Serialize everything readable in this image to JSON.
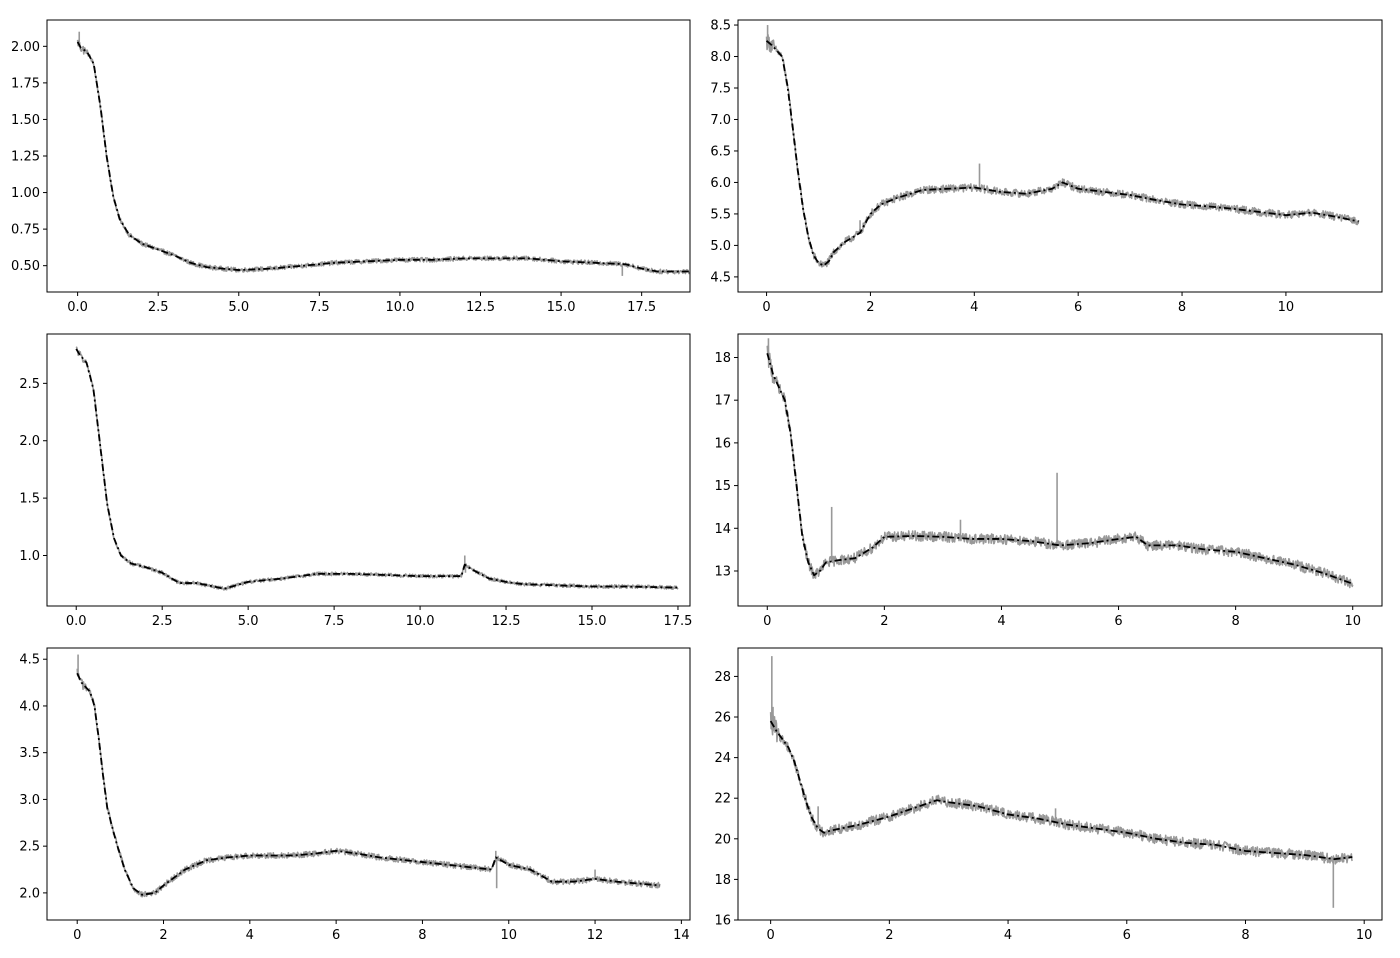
{
  "colors": {
    "noisy": "#999999",
    "smooth": "#000000",
    "background": "#ffffff"
  },
  "chart_data": [
    {
      "type": "line",
      "xlim": [
        -0.95,
        19.0
      ],
      "ylim": [
        0.32,
        2.18
      ],
      "xticks": [
        0,
        2.5,
        5,
        7.5,
        10,
        12.5,
        15,
        17.5
      ],
      "xtick_labels": [
        "0.0",
        "2.5",
        "5.0",
        "7.5",
        "10.0",
        "12.5",
        "15.0",
        "17.5"
      ],
      "yticks": [
        0.5,
        0.75,
        1.0,
        1.25,
        1.5,
        1.75,
        2.0
      ],
      "ytick_labels": [
        "0.50",
        "0.75",
        "1.00",
        "1.25",
        "1.50",
        "1.75",
        "2.00"
      ],
      "noise": 0.015,
      "spikes": [
        [
          0.05,
          2.1
        ],
        [
          16.9,
          0.43
        ],
        [
          17.1,
          0.5
        ]
      ],
      "x": [
        0,
        0.1,
        0.3,
        0.5,
        0.7,
        0.9,
        1.1,
        1.3,
        1.6,
        2.0,
        2.5,
        3.0,
        3.5,
        4.0,
        5.0,
        6.0,
        7.5,
        8.0,
        9.0,
        10.0,
        11.0,
        12.0,
        13.0,
        14.0,
        15.0,
        16.0,
        17.0,
        17.5,
        18.0,
        19.0
      ],
      "y": [
        2.03,
        1.99,
        1.96,
        1.88,
        1.6,
        1.25,
        0.98,
        0.82,
        0.71,
        0.65,
        0.61,
        0.57,
        0.52,
        0.49,
        0.47,
        0.48,
        0.51,
        0.52,
        0.53,
        0.54,
        0.54,
        0.55,
        0.55,
        0.55,
        0.53,
        0.52,
        0.51,
        0.48,
        0.46,
        0.46
      ]
    },
    {
      "type": "line",
      "xlim": [
        -0.55,
        11.85
      ],
      "ylim": [
        4.26,
        8.58
      ],
      "xticks": [
        0,
        2,
        4,
        6,
        8,
        10
      ],
      "xtick_labels": [
        "0",
        "2",
        "4",
        "6",
        "8",
        "10"
      ],
      "yticks": [
        4.5,
        5.0,
        5.5,
        6.0,
        6.5,
        7.0,
        7.5,
        8.0,
        8.5
      ],
      "ytick_labels": [
        "4.5",
        "5.0",
        "5.5",
        "6.0",
        "6.5",
        "7.0",
        "7.5",
        "8.0",
        "8.5"
      ],
      "noise": 0.06,
      "spikes": [
        [
          0.02,
          8.5
        ],
        [
          4.1,
          6.3
        ],
        [
          1.8,
          5.4
        ]
      ],
      "x": [
        0,
        0.1,
        0.3,
        0.4,
        0.5,
        0.6,
        0.7,
        0.8,
        0.9,
        1.0,
        1.1,
        1.2,
        1.3,
        1.5,
        1.8,
        2.0,
        2.2,
        2.5,
        3.0,
        3.5,
        4.0,
        4.5,
        5.0,
        5.5,
        5.7,
        6.0,
        7.0,
        7.5,
        8.0,
        8.5,
        9.0,
        10.0,
        10.5,
        11.0,
        11.4
      ],
      "y": [
        8.25,
        8.18,
        8.0,
        7.55,
        6.9,
        6.2,
        5.6,
        5.15,
        4.85,
        4.72,
        4.68,
        4.75,
        4.9,
        5.05,
        5.2,
        5.5,
        5.65,
        5.75,
        5.88,
        5.9,
        5.92,
        5.85,
        5.82,
        5.9,
        6.0,
        5.9,
        5.8,
        5.72,
        5.65,
        5.62,
        5.58,
        5.48,
        5.52,
        5.45,
        5.38
      ]
    },
    {
      "type": "line",
      "xlim": [
        -0.85,
        17.85
      ],
      "ylim": [
        0.56,
        2.93
      ],
      "xticks": [
        0,
        2.5,
        5,
        7.5,
        10,
        12.5,
        15,
        17.5
      ],
      "xtick_labels": [
        "0.0",
        "2.5",
        "5.0",
        "7.5",
        "10.0",
        "12.5",
        "15.0",
        "17.5"
      ],
      "yticks": [
        1.0,
        1.5,
        2.0,
        2.5
      ],
      "ytick_labels": [
        "1.0",
        "1.5",
        "2.0",
        "2.5"
      ],
      "noise": 0.015,
      "spikes": [
        [
          11.3,
          1.0
        ],
        [
          11.32,
          0.85
        ]
      ],
      "x": [
        0,
        0.1,
        0.3,
        0.5,
        0.7,
        0.9,
        1.1,
        1.3,
        1.6,
        2.0,
        2.5,
        3.0,
        3.5,
        4.0,
        4.3,
        5.0,
        6.0,
        7.0,
        8.0,
        9.0,
        10.0,
        11.2,
        11.3,
        11.5,
        12.0,
        12.5,
        13.0,
        14.0,
        15.0,
        16.0,
        17.5
      ],
      "y": [
        2.8,
        2.75,
        2.68,
        2.45,
        1.95,
        1.45,
        1.15,
        1.0,
        0.93,
        0.9,
        0.85,
        0.76,
        0.76,
        0.73,
        0.71,
        0.77,
        0.8,
        0.84,
        0.84,
        0.83,
        0.82,
        0.82,
        0.92,
        0.88,
        0.8,
        0.77,
        0.75,
        0.74,
        0.73,
        0.73,
        0.72
      ]
    },
    {
      "type": "line",
      "xlim": [
        -0.5,
        10.5
      ],
      "ylim": [
        12.18,
        18.55
      ],
      "xticks": [
        0,
        2,
        4,
        6,
        8,
        10
      ],
      "xtick_labels": [
        "0",
        "2",
        "4",
        "6",
        "8",
        "10"
      ],
      "yticks": [
        13,
        14,
        15,
        16,
        17,
        18
      ],
      "ytick_labels": [
        "13",
        "14",
        "15",
        "16",
        "17",
        "18"
      ],
      "noise": 0.12,
      "spikes": [
        [
          0.02,
          18.45
        ],
        [
          1.1,
          14.5
        ],
        [
          4.95,
          15.3
        ],
        [
          3.3,
          14.2
        ]
      ],
      "x": [
        0,
        0.1,
        0.3,
        0.4,
        0.5,
        0.6,
        0.7,
        0.8,
        0.9,
        1.0,
        1.2,
        1.5,
        1.8,
        2.0,
        2.5,
        3.0,
        3.5,
        4.0,
        4.5,
        5.0,
        5.5,
        6.0,
        6.3,
        6.5,
        7.0,
        7.5,
        8.0,
        8.5,
        9.0,
        9.5,
        10.0
      ],
      "y": [
        18.1,
        17.6,
        17.0,
        16.2,
        15.0,
        13.8,
        13.2,
        12.9,
        13.0,
        13.2,
        13.25,
        13.3,
        13.55,
        13.8,
        13.82,
        13.8,
        13.75,
        13.75,
        13.7,
        13.6,
        13.65,
        13.75,
        13.8,
        13.6,
        13.6,
        13.5,
        13.45,
        13.3,
        13.15,
        12.95,
        12.7
      ]
    },
    {
      "type": "line",
      "xlim": [
        -0.7,
        14.2
      ],
      "ylim": [
        1.71,
        4.62
      ],
      "xticks": [
        0,
        2,
        4,
        6,
        8,
        10,
        12,
        14
      ],
      "xtick_labels": [
        "0",
        "2",
        "4",
        "6",
        "8",
        "10",
        "12",
        "14"
      ],
      "yticks": [
        2.0,
        2.5,
        3.0,
        3.5,
        4.0,
        4.5
      ],
      "ytick_labels": [
        "2.0",
        "2.5",
        "3.0",
        "3.5",
        "4.0",
        "4.5"
      ],
      "noise": 0.03,
      "spikes": [
        [
          0.02,
          4.55
        ],
        [
          9.7,
          2.45
        ],
        [
          9.72,
          2.05
        ],
        [
          12.0,
          2.25
        ]
      ],
      "x": [
        0,
        0.1,
        0.3,
        0.4,
        0.5,
        0.6,
        0.7,
        0.9,
        1.1,
        1.3,
        1.5,
        1.8,
        2.0,
        2.5,
        3.0,
        3.5,
        4.0,
        4.5,
        5.0,
        5.5,
        6.0,
        6.5,
        7.0,
        8.0,
        9.0,
        9.6,
        9.7,
        10.0,
        10.5,
        11.0,
        11.5,
        12.0,
        12.5,
        13.0,
        13.5
      ],
      "y": [
        4.35,
        4.25,
        4.15,
        4.0,
        3.65,
        3.25,
        2.9,
        2.55,
        2.25,
        2.05,
        1.98,
        2.0,
        2.08,
        2.25,
        2.35,
        2.38,
        2.4,
        2.4,
        2.4,
        2.42,
        2.45,
        2.42,
        2.38,
        2.33,
        2.28,
        2.25,
        2.38,
        2.3,
        2.25,
        2.12,
        2.12,
        2.15,
        2.12,
        2.1,
        2.08
      ]
    },
    {
      "type": "line",
      "xlim": [
        -0.55,
        10.3
      ],
      "ylim": [
        16.0,
        29.4
      ],
      "xticks": [
        0,
        2,
        4,
        6,
        8,
        10
      ],
      "xtick_labels": [
        "0",
        "2",
        "4",
        "6",
        "8",
        "10"
      ],
      "yticks": [
        16,
        18,
        20,
        22,
        24,
        26,
        28
      ],
      "ytick_labels": [
        "16",
        "18",
        "20",
        "22",
        "24",
        "26",
        "28"
      ],
      "noise": 0.25,
      "spikes": [
        [
          0.02,
          29.0
        ],
        [
          0.04,
          26.5
        ],
        [
          9.48,
          16.6
        ],
        [
          0.8,
          21.6
        ],
        [
          4.8,
          21.5
        ]
      ],
      "x": [
        0,
        0.1,
        0.2,
        0.3,
        0.4,
        0.5,
        0.6,
        0.7,
        0.8,
        0.9,
        1.0,
        1.5,
        2.0,
        2.5,
        2.8,
        3.0,
        3.5,
        4.0,
        4.5,
        5.0,
        5.5,
        6.0,
        6.5,
        7.0,
        7.5,
        8.0,
        8.5,
        9.0,
        9.5,
        9.8
      ],
      "y": [
        25.8,
        25.3,
        24.9,
        24.5,
        23.8,
        22.8,
        21.8,
        21.0,
        20.5,
        20.3,
        20.4,
        20.7,
        21.1,
        21.6,
        21.9,
        21.8,
        21.6,
        21.2,
        21.0,
        20.7,
        20.5,
        20.3,
        20.0,
        19.8,
        19.7,
        19.4,
        19.3,
        19.2,
        19.0,
        19.1
      ]
    }
  ]
}
